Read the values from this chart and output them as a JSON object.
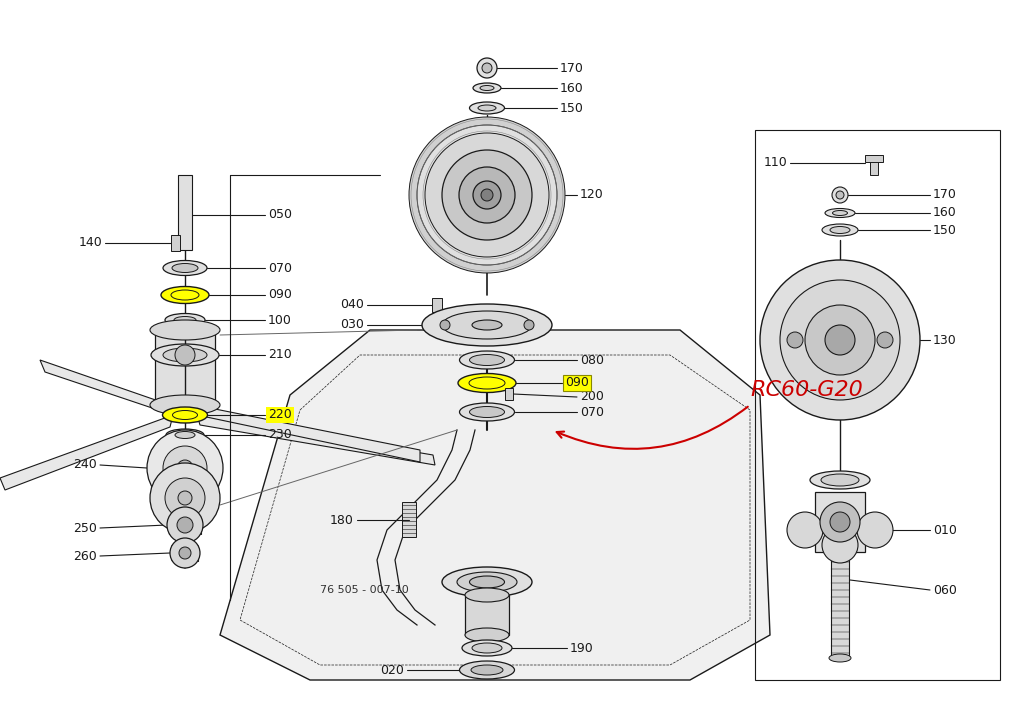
{
  "bg_color": "#ffffff",
  "line_color": "#1a1a1a",
  "highlight_yellow": "#ffff00",
  "red_text_color": "#cc0000",
  "label_color": "#111111",
  "diagram_number": "76505-007-10",
  "annotation_text": "RC60-G20"
}
